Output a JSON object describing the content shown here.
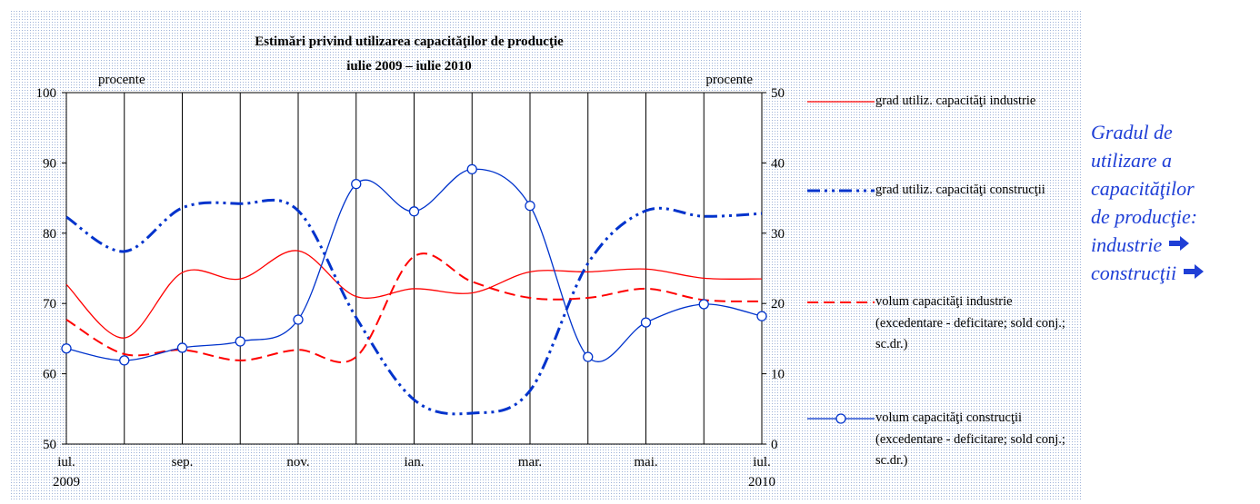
{
  "chart_data": {
    "type": "line",
    "title": [
      "Estimări privind utilizarea capacităţilor de producţie",
      "iulie 2009 – iulie 2010"
    ],
    "y_label": "procente",
    "y2_label": "procente",
    "categories": [
      "iul.",
      null,
      "sep.",
      null,
      "nov.",
      null,
      "ian.",
      null,
      "mar.",
      null,
      "mai.",
      null,
      "iul."
    ],
    "category_years": [
      "2009",
      null,
      null,
      null,
      null,
      null,
      null,
      null,
      null,
      null,
      null,
      null,
      "2010"
    ],
    "ylim": [
      50,
      100
    ],
    "yticks": [
      50,
      60,
      70,
      80,
      90,
      100
    ],
    "y2lim": [
      0,
      50
    ],
    "y2ticks": [
      0,
      10,
      20,
      30,
      40,
      50
    ],
    "grid": "vertical",
    "legend": "right",
    "series": [
      {
        "name": "grad utiliz. capacităţi industrie",
        "color": "#ff0000",
        "dash": "solid",
        "axis": "y",
        "values": [
          72.7,
          65.1,
          74.4,
          73.5,
          77.5,
          71,
          72.1,
          71.5,
          74.5,
          74.5,
          74.9,
          73.6,
          73.5
        ]
      },
      {
        "name": "grad utiliz. capacităţi construcţii",
        "color": "#0033cc",
        "dash": "dashdot",
        "axis": "y",
        "values": [
          82.3,
          77.4,
          83.6,
          84.2,
          83.2,
          68,
          56.3,
          54.4,
          57.6,
          75.7,
          83.2,
          82.4,
          82.8
        ]
      },
      {
        "name": "volum capacităţi industrie (excedentare - deficitare; sold conj.; sc.dr.)",
        "color": "#ff0000",
        "dash": "dash",
        "axis": "y2",
        "values": [
          17.7,
          12.8,
          13.4,
          11.9,
          13.4,
          12.4,
          26.7,
          23.1,
          20.8,
          20.8,
          22.1,
          20.5,
          20.3
        ]
      },
      {
        "name": "volum capacităţi construcţii (excedentare - deficitare; sold conj.; sc.dr.)",
        "color": "#0033cc",
        "dash": "solid",
        "axis": "y2",
        "marker": "circle",
        "values": [
          13.6,
          11.9,
          13.7,
          14.6,
          17.7,
          37,
          33.1,
          39.1,
          33.9,
          12.4,
          17.3,
          19.9,
          18.2
        ]
      }
    ]
  },
  "side_note": {
    "lines": [
      "Gradul de",
      "utilizare a",
      "capacităţilor",
      "de producţie:",
      "industrie",
      "construcţii"
    ]
  }
}
